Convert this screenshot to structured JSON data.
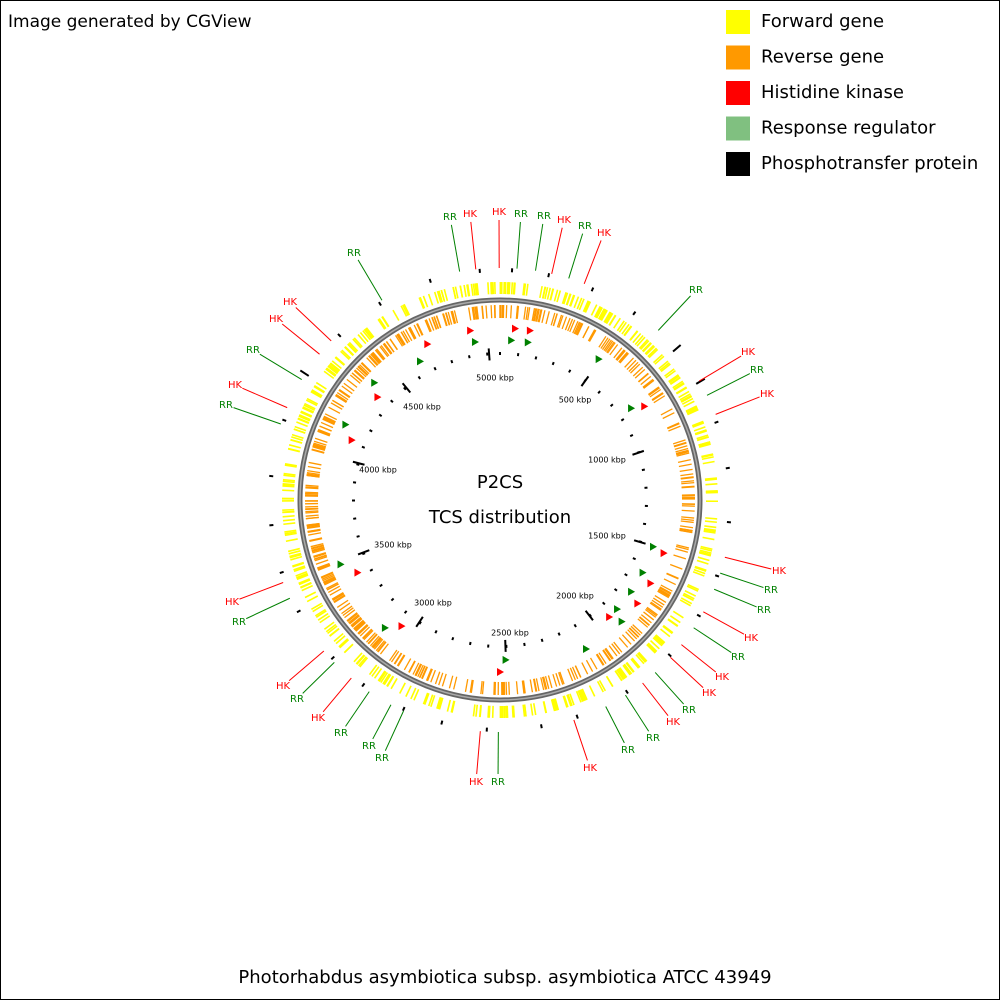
{
  "header": {
    "credit": "Image generated by CGView"
  },
  "legend": [
    {
      "label": "Forward gene",
      "color": "#ffff00"
    },
    {
      "label": "Reverse gene",
      "color": "#ff9900"
    },
    {
      "label": "Histidine kinase",
      "color": "#ff0000"
    },
    {
      "label": "Response regulator",
      "color": "#80c080"
    },
    {
      "label": "Phosphotransfer protein",
      "color": "#000000"
    }
  ],
  "center": {
    "title": "P2CS",
    "subtitle": "TCS distribution"
  },
  "ruler": [
    "500 kbp",
    "1000 kbp",
    "1500 kbp",
    "2000 kbp",
    "2500 kbp",
    "3000 kbp",
    "3500 kbp",
    "4000 kbp",
    "4500 kbp",
    "5000 kbp"
  ],
  "features": [
    {
      "label": "RR",
      "color": "#008000"
    },
    {
      "label": "HK",
      "color": "#ff0000"
    },
    {
      "label": "HK",
      "color": "#ff0000"
    },
    {
      "label": "RR",
      "color": "#008000"
    },
    {
      "label": "RR",
      "color": "#008000"
    },
    {
      "label": "HK",
      "color": "#ff0000"
    },
    {
      "label": "RR",
      "color": "#008000"
    },
    {
      "label": "HK",
      "color": "#ff0000"
    },
    {
      "label": "RR",
      "color": "#008000"
    },
    {
      "label": "HK",
      "color": "#ff0000"
    },
    {
      "label": "RR",
      "color": "#008000"
    },
    {
      "label": "HK",
      "color": "#ff0000"
    },
    {
      "label": "HK",
      "color": "#ff0000"
    },
    {
      "label": "RR",
      "color": "#008000"
    },
    {
      "label": "RR",
      "color": "#008000"
    },
    {
      "label": "HK",
      "color": "#ff0000"
    },
    {
      "label": "RR",
      "color": "#008000"
    },
    {
      "label": "HK",
      "color": "#ff0000"
    },
    {
      "label": "HK",
      "color": "#ff0000"
    },
    {
      "label": "RR",
      "color": "#008000"
    },
    {
      "label": "HK",
      "color": "#ff0000"
    },
    {
      "label": "RR",
      "color": "#008000"
    },
    {
      "label": "RR",
      "color": "#008000"
    },
    {
      "label": "HK",
      "color": "#ff0000"
    },
    {
      "label": "RR",
      "color": "#008000"
    },
    {
      "label": "HK",
      "color": "#ff0000"
    },
    {
      "label": "RR",
      "color": "#008000"
    },
    {
      "label": "RR",
      "color": "#008000"
    },
    {
      "label": "RR",
      "color": "#008000"
    },
    {
      "label": "HK",
      "color": "#ff0000"
    },
    {
      "label": "RR",
      "color": "#008000"
    },
    {
      "label": "HK",
      "color": "#ff0000"
    },
    {
      "label": "RR",
      "color": "#008000"
    },
    {
      "label": "HK",
      "color": "#ff0000"
    },
    {
      "label": "RR",
      "color": "#008000"
    },
    {
      "label": "HK",
      "color": "#ff0000"
    },
    {
      "label": "RR",
      "color": "#008000"
    },
    {
      "label": "HK",
      "color": "#ff0000"
    },
    {
      "label": "HK",
      "color": "#ff0000"
    },
    {
      "label": "RR",
      "color": "#008000"
    }
  ],
  "footer": {
    "caption": "Photorhabdus asymbiotica subsp. asymbiotica ATCC 43949"
  }
}
